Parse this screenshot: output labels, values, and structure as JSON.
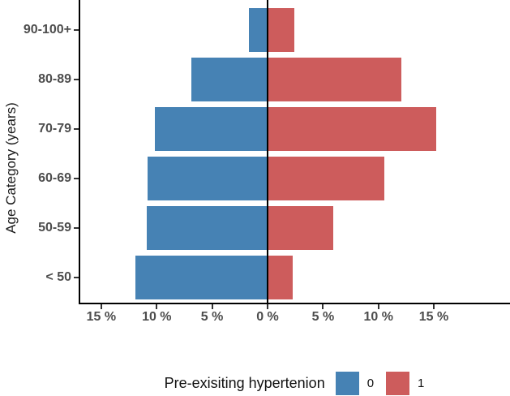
{
  "chart_data": {
    "type": "bar",
    "orientation": "horizontal_pyramid",
    "title": "",
    "xlabel": "",
    "ylabel": "Age Category (years)",
    "categories": [
      "90-100+",
      "80-89",
      "70-79",
      "60-69",
      "50-59",
      "< 50"
    ],
    "series": [
      {
        "name": "0",
        "side": "left",
        "color": "#4682B4",
        "values": [
          1.7,
          6.9,
          10.2,
          10.8,
          10.9,
          11.9
        ]
      },
      {
        "name": "1",
        "side": "right",
        "color": "#CD5C5C",
        "values": [
          2.4,
          12.1,
          15.2,
          10.5,
          5.9,
          2.3
        ]
      }
    ],
    "x_axis": {
      "unit": "%",
      "xlim": [
        -17,
        22
      ],
      "ticks": [
        {
          "value": -15,
          "label": "15 %"
        },
        {
          "value": -10,
          "label": "10 %"
        },
        {
          "value": -5,
          "label": "5 %"
        },
        {
          "value": 0,
          "label": "0 %"
        },
        {
          "value": 5,
          "label": "5 %"
        },
        {
          "value": 10,
          "label": "10 %"
        },
        {
          "value": 15,
          "label": "15 %"
        }
      ]
    },
    "grid": false,
    "legend": {
      "title": "Pre-exisiting hypertenion",
      "position": "bottom",
      "entries": [
        {
          "label": "0",
          "color": "#4682B4"
        },
        {
          "label": "1",
          "color": "#CD5C5C"
        }
      ]
    },
    "colors": {
      "axis_text": "#4d4d4d",
      "axis_line": "#000000",
      "zero_line": "#000000",
      "background": "#ffffff"
    }
  }
}
